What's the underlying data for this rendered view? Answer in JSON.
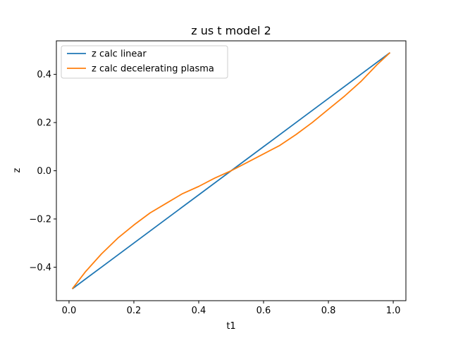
{
  "chart_data": {
    "type": "line",
    "title": "z us t model 2",
    "xlabel": "t1",
    "ylabel": "z",
    "xlim": [
      -0.039,
      1.039
    ],
    "ylim": [
      -0.539,
      0.539
    ],
    "xticks": [
      0.0,
      0.2,
      0.4,
      0.6,
      0.8,
      1.0
    ],
    "xtick_labels": [
      "0.0",
      "0.2",
      "0.4",
      "0.6",
      "0.8",
      "1.0"
    ],
    "yticks": [
      -0.4,
      -0.2,
      0.0,
      0.2,
      0.4
    ],
    "ytick_labels": [
      "−0.4",
      "−0.2",
      "0.0",
      "0.2",
      "0.4"
    ],
    "grid": false,
    "legend_position": "upper-left",
    "series": [
      {
        "name": "z calc linear",
        "color": "#1f77b4",
        "x": [
          0.01,
          0.1,
          0.2,
          0.3,
          0.4,
          0.5,
          0.6,
          0.7,
          0.8,
          0.9,
          0.99
        ],
        "y": [
          -0.49,
          -0.4,
          -0.3,
          -0.2,
          -0.1,
          0.0,
          0.1,
          0.2,
          0.3,
          0.4,
          0.49
        ]
      },
      {
        "name": "z calc decelerating plasma",
        "color": "#ff7f0e",
        "x": [
          0.01,
          0.05,
          0.1,
          0.15,
          0.2,
          0.25,
          0.3,
          0.35,
          0.4,
          0.45,
          0.5,
          0.55,
          0.6,
          0.65,
          0.7,
          0.75,
          0.8,
          0.85,
          0.9,
          0.95,
          0.99
        ],
        "y": [
          -0.49,
          -0.42,
          -0.345,
          -0.28,
          -0.225,
          -0.175,
          -0.135,
          -0.095,
          -0.065,
          -0.03,
          0.0,
          0.035,
          0.07,
          0.105,
          0.15,
          0.2,
          0.255,
          0.31,
          0.37,
          0.44,
          0.49
        ]
      }
    ]
  }
}
